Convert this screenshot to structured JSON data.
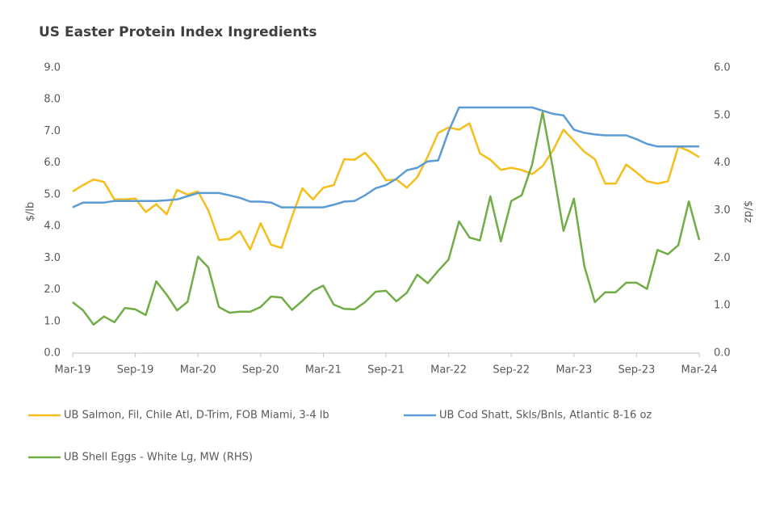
{
  "chart_data": {
    "type": "line",
    "title": "US Easter Protein Index Ingredients",
    "y_label": "$/lb",
    "y2_label": "$/dz",
    "categories": [
      "Mar-19",
      null,
      null,
      null,
      null,
      null,
      "Sep-19",
      null,
      null,
      null,
      null,
      null,
      "Mar-20",
      null,
      null,
      null,
      null,
      null,
      "Sep-20",
      null,
      null,
      null,
      null,
      null,
      "Mar-21",
      null,
      null,
      null,
      null,
      null,
      "Sep-21",
      null,
      null,
      null,
      null,
      null,
      "Mar-22",
      null,
      null,
      null,
      null,
      null,
      "Sep-22",
      null,
      null,
      null,
      null,
      null,
      "Mar-23",
      null,
      null,
      null,
      null,
      null,
      "Sep-23",
      null,
      null,
      null,
      null,
      null,
      "Mar-24"
    ],
    "ylim": [
      0,
      9
    ],
    "yticks": [
      {
        "value": 0,
        "label": "0.0"
      },
      {
        "value": 1,
        "label": "1.0"
      },
      {
        "value": 2,
        "label": "2.0"
      },
      {
        "value": 3,
        "label": "3.0"
      },
      {
        "value": 4,
        "label": "4.0"
      },
      {
        "value": 5,
        "label": "5.0"
      },
      {
        "value": 6,
        "label": "6.0"
      },
      {
        "value": 7,
        "label": "7.0"
      },
      {
        "value": 8,
        "label": "8.0"
      },
      {
        "value": 9,
        "label": "9.0"
      }
    ],
    "y2lim": [
      0,
      6
    ],
    "y2ticks": [
      {
        "value": 0,
        "label": "0.0"
      },
      {
        "value": 1,
        "label": "1.0"
      },
      {
        "value": 2,
        "label": "2.0"
      },
      {
        "value": 3,
        "label": "3.0"
      },
      {
        "value": 4,
        "label": "4.0"
      },
      {
        "value": 5,
        "label": "5.0"
      },
      {
        "value": 6,
        "label": "6.0"
      }
    ],
    "grid": false,
    "series": [
      {
        "name": "UB Salmon, Fil, Chile Atl, D-Trim, FOB Miami, 3-4 lb",
        "color": "#f5be1a",
        "values": [
          5.1,
          5.3,
          5.48,
          5.4,
          4.85,
          4.85,
          4.88,
          4.45,
          4.7,
          4.38,
          5.15,
          5.0,
          5.1,
          4.5,
          3.57,
          3.6,
          3.85,
          3.27,
          4.1,
          3.42,
          3.32,
          4.3,
          5.2,
          4.85,
          5.22,
          5.3,
          6.12,
          6.1,
          6.32,
          5.95,
          5.45,
          5.48,
          5.22,
          5.55,
          6.2,
          6.95,
          7.12,
          7.05,
          7.25,
          6.3,
          6.1,
          5.78,
          5.85,
          5.78,
          5.65,
          5.9,
          6.4,
          7.05,
          6.7,
          6.35,
          6.12,
          5.35,
          5.35,
          5.95,
          5.7,
          5.42,
          5.35,
          5.42,
          6.52,
          6.38,
          6.18
        ]
      },
      {
        "name": "UB Cod Shatt, Skls/Bnls, Atlantic 8-16 oz",
        "color": "#5b9bd5",
        "values": [
          4.6,
          4.75,
          4.75,
          4.75,
          4.8,
          4.8,
          4.8,
          4.8,
          4.8,
          4.82,
          4.85,
          4.95,
          5.05,
          5.05,
          5.05,
          4.98,
          4.9,
          4.78,
          4.78,
          4.75,
          4.6,
          4.6,
          4.6,
          4.6,
          4.6,
          4.68,
          4.78,
          4.8,
          4.98,
          5.2,
          5.3,
          5.5,
          5.77,
          5.85,
          6.05,
          6.08,
          7.0,
          7.75,
          7.75,
          7.75,
          7.75,
          7.75,
          7.75,
          7.75,
          7.75,
          7.65,
          7.55,
          7.5,
          7.05,
          6.95,
          6.9,
          6.87,
          6.87,
          6.87,
          6.75,
          6.6,
          6.52,
          6.52,
          6.52,
          6.52,
          6.52
        ]
      },
      {
        "name": "UB Shell Eggs - White Lg, MW (RHS)",
        "color": "#70ad47",
        "axis": "y2",
        "values": [
          1.07,
          0.9,
          0.6,
          0.77,
          0.65,
          0.95,
          0.92,
          0.8,
          1.51,
          1.23,
          0.9,
          1.08,
          2.03,
          1.8,
          0.97,
          0.85,
          0.87,
          0.87,
          0.97,
          1.19,
          1.17,
          0.91,
          1.1,
          1.31,
          1.42,
          1.02,
          0.93,
          0.92,
          1.07,
          1.29,
          1.31,
          1.09,
          1.27,
          1.65,
          1.47,
          1.73,
          1.97,
          2.77,
          2.43,
          2.37,
          3.3,
          2.35,
          3.2,
          3.32,
          3.97,
          5.07,
          3.87,
          2.57,
          3.25,
          1.83,
          1.07,
          1.28,
          1.28,
          1.48,
          1.48,
          1.35,
          2.17,
          2.08,
          2.27,
          3.19,
          2.38
        ]
      }
    ]
  }
}
